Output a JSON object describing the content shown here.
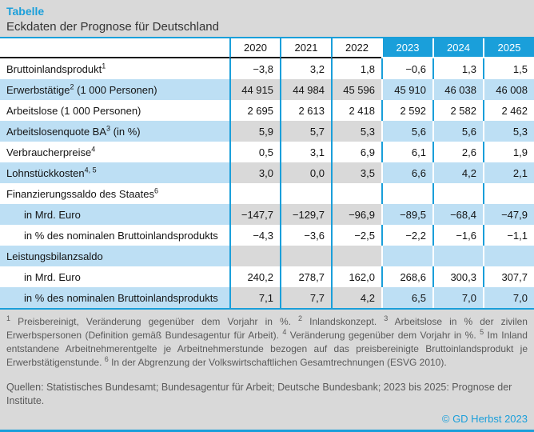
{
  "page": {
    "title": "Tabelle",
    "subtitle": "Eckdaten der Prognose für Deutschland",
    "copyright": "© GD Herbst 2023"
  },
  "colors": {
    "accent_blue": "#1A9FDA",
    "forecast_header_blue": "#1A9FDA",
    "forecast_row_light_blue": "#BDDFF4",
    "historical_row_gray": "#D9D9D9",
    "page_background_gray": "#D9D9D9",
    "footnote_text_gray": "#595959"
  },
  "table": {
    "year_columns": [
      {
        "label": "2020",
        "forecast": false
      },
      {
        "label": "2021",
        "forecast": false
      },
      {
        "label": "2022",
        "forecast": false
      },
      {
        "label": "2023",
        "forecast": true
      },
      {
        "label": "2024",
        "forecast": true
      },
      {
        "label": "2025",
        "forecast": true
      }
    ],
    "rows": [
      {
        "label": "Bruttoinlandsprodukt",
        "sup": "1",
        "label_suffix": "",
        "indent": false,
        "striped": false,
        "values": [
          "−3,8",
          "3,2",
          "1,8",
          "−0,6",
          "1,3",
          "1,5"
        ]
      },
      {
        "label": "Erwerbstätige",
        "sup": "2",
        "label_suffix": " (1 000 Personen)",
        "indent": false,
        "striped": true,
        "values": [
          "44 915",
          "44 984",
          "45 596",
          "45 910",
          "46 038",
          "46 008"
        ]
      },
      {
        "label": "Arbeitslose (1 000 Personen)",
        "sup": "",
        "label_suffix": "",
        "indent": false,
        "striped": false,
        "values": [
          "2 695",
          "2 613",
          "2 418",
          "2 592",
          "2 582",
          "2 462"
        ]
      },
      {
        "label": "Arbeitslosenquote BA",
        "sup": "3",
        "label_suffix": " (in %)",
        "indent": false,
        "striped": true,
        "values": [
          "5,9",
          "5,7",
          "5,3",
          "5,6",
          "5,6",
          "5,3"
        ]
      },
      {
        "label": "Verbraucherpreise",
        "sup": "4",
        "label_suffix": "",
        "indent": false,
        "striped": false,
        "values": [
          "0,5",
          "3,1",
          "6,9",
          "6,1",
          "2,6",
          "1,9"
        ]
      },
      {
        "label": "Lohnstückkosten",
        "sup": "4, 5",
        "label_suffix": "",
        "indent": false,
        "striped": true,
        "values": [
          "3,0",
          "0,0",
          "3,5",
          "6,6",
          "4,2",
          "2,1"
        ]
      },
      {
        "label": "Finanzierungssaldo des Staates",
        "sup": "6",
        "label_suffix": "",
        "indent": false,
        "striped": false,
        "values": [
          "",
          "",
          "",
          "",
          "",
          ""
        ]
      },
      {
        "label": "in Mrd. Euro",
        "sup": "",
        "label_suffix": "",
        "indent": true,
        "striped": true,
        "values": [
          "−147,7",
          "−129,7",
          "−96,9",
          "−89,5",
          "−68,4",
          "−47,9"
        ]
      },
      {
        "label": "in % des nominalen Bruttoinlandsprodukts",
        "sup": "",
        "label_suffix": "",
        "indent": true,
        "striped": false,
        "values": [
          "−4,3",
          "−3,6",
          "−2,5",
          "−2,2",
          "−1,6",
          "−1,1"
        ]
      },
      {
        "label": "Leistungsbilanzsaldo",
        "sup": "",
        "label_suffix": "",
        "indent": false,
        "striped": true,
        "values": [
          "",
          "",
          "",
          "",
          "",
          ""
        ]
      },
      {
        "label": "in Mrd. Euro",
        "sup": "",
        "label_suffix": "",
        "indent": true,
        "striped": false,
        "values": [
          "240,2",
          "278,7",
          "162,0",
          "268,6",
          "300,3",
          "307,7"
        ]
      },
      {
        "label": "in % des nominalen Bruttoinlandsprodukts",
        "sup": "",
        "label_suffix": "",
        "indent": true,
        "striped": true,
        "values": [
          "7,1",
          "7,7",
          "4,2",
          "6,5",
          "7,0",
          "7,0"
        ]
      }
    ]
  },
  "footnotes": [
    {
      "marker": "1",
      "text": "Preisbereinigt, Veränderung gegenüber dem Vorjahr in %."
    },
    {
      "marker": "2",
      "text": "Inlandskonzept."
    },
    {
      "marker": "3",
      "text": "Arbeitslose in % der zivilen Erwerbspersonen (Definition gemäß Bundesagentur für Arbeit)."
    },
    {
      "marker": "4",
      "text": "Veränderung gegenüber dem Vorjahr in %."
    },
    {
      "marker": "5",
      "text": "Im Inland entstandene Arbeitnehmerentgelte je Arbeitnehmerstunde bezogen auf das preisbereinigte Bruttoinlandsprodukt je Erwerbstätigenstunde."
    },
    {
      "marker": "6",
      "text": "In der Abgrenzung der Volkswirtschaftlichen Gesamtrechnungen (ESVG 2010)."
    }
  ],
  "sources": "Quellen: Statistisches Bundesamt; Bundesagentur für Arbeit; Deutsche Bundesbank; 2023 bis 2025: Prognose der Institute."
}
